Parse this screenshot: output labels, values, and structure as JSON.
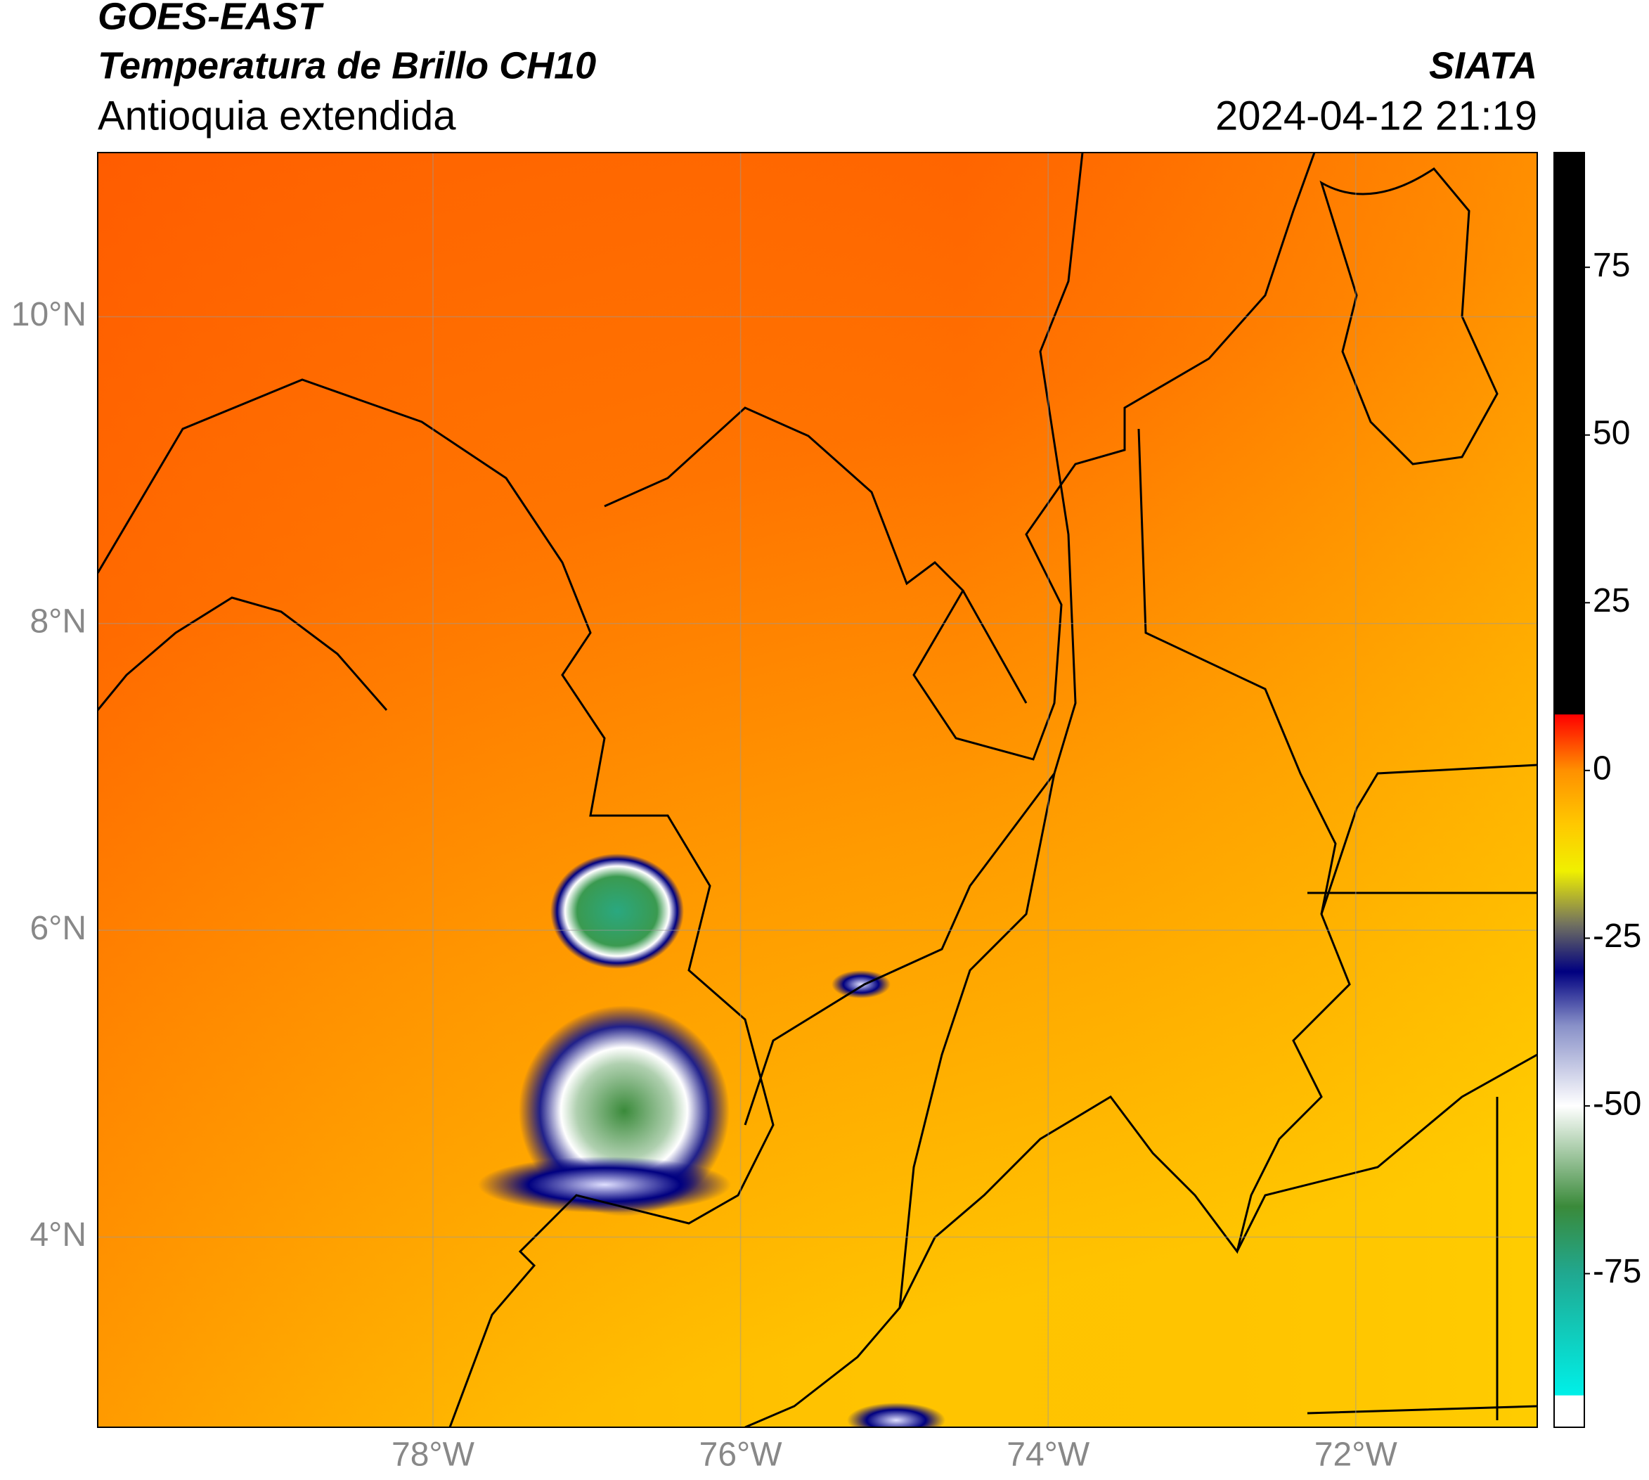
{
  "header": {
    "title": "GOES-EAST",
    "subtitle": "Temperatura de Brillo CH10",
    "region": "Antioquia extendida",
    "source": "SIATA",
    "datetime": "2024-04-12 21:19"
  },
  "map": {
    "xlim": [
      -80.18,
      -70.82
    ],
    "ylim": [
      2.76,
      11.07
    ],
    "xticks": [
      {
        "value": -78,
        "label": "78°W"
      },
      {
        "value": -76,
        "label": "76°W"
      },
      {
        "value": -74,
        "label": "74°W"
      },
      {
        "value": -72,
        "label": "72°W"
      }
    ],
    "yticks": [
      {
        "value": 4,
        "label": "4°N"
      },
      {
        "value": 6,
        "label": "6°N"
      },
      {
        "value": 8,
        "label": "8°N"
      },
      {
        "value": 10,
        "label": "10°N"
      }
    ],
    "grid": true
  },
  "colorbar": {
    "lim": [
      -97.9,
      92.1
    ],
    "ticks": [
      -75,
      -50,
      -25,
      0,
      25,
      50,
      75
    ],
    "colormap": [
      {
        "value": -97.9,
        "color": "#ffffff"
      },
      {
        "value": -93.2,
        "color": "#ffffff"
      },
      {
        "value": -93.1,
        "color": "#00f0e8"
      },
      {
        "value": -75,
        "color": "#20a890"
      },
      {
        "value": -65,
        "color": "#3a8a3a"
      },
      {
        "value": -50,
        "color": "#ffffff"
      },
      {
        "value": -38,
        "color": "#8890c8"
      },
      {
        "value": -30,
        "color": "#000080"
      },
      {
        "value": -23,
        "color": "#707060"
      },
      {
        "value": -15,
        "color": "#f0f000"
      },
      {
        "value": -8,
        "color": "#ffc800"
      },
      {
        "value": 0,
        "color": "#ff9000"
      },
      {
        "value": 8.3,
        "color": "#ff0000"
      },
      {
        "value": 8.4,
        "color": "#000000"
      },
      {
        "value": 92.1,
        "color": "#000000"
      }
    ]
  }
}
